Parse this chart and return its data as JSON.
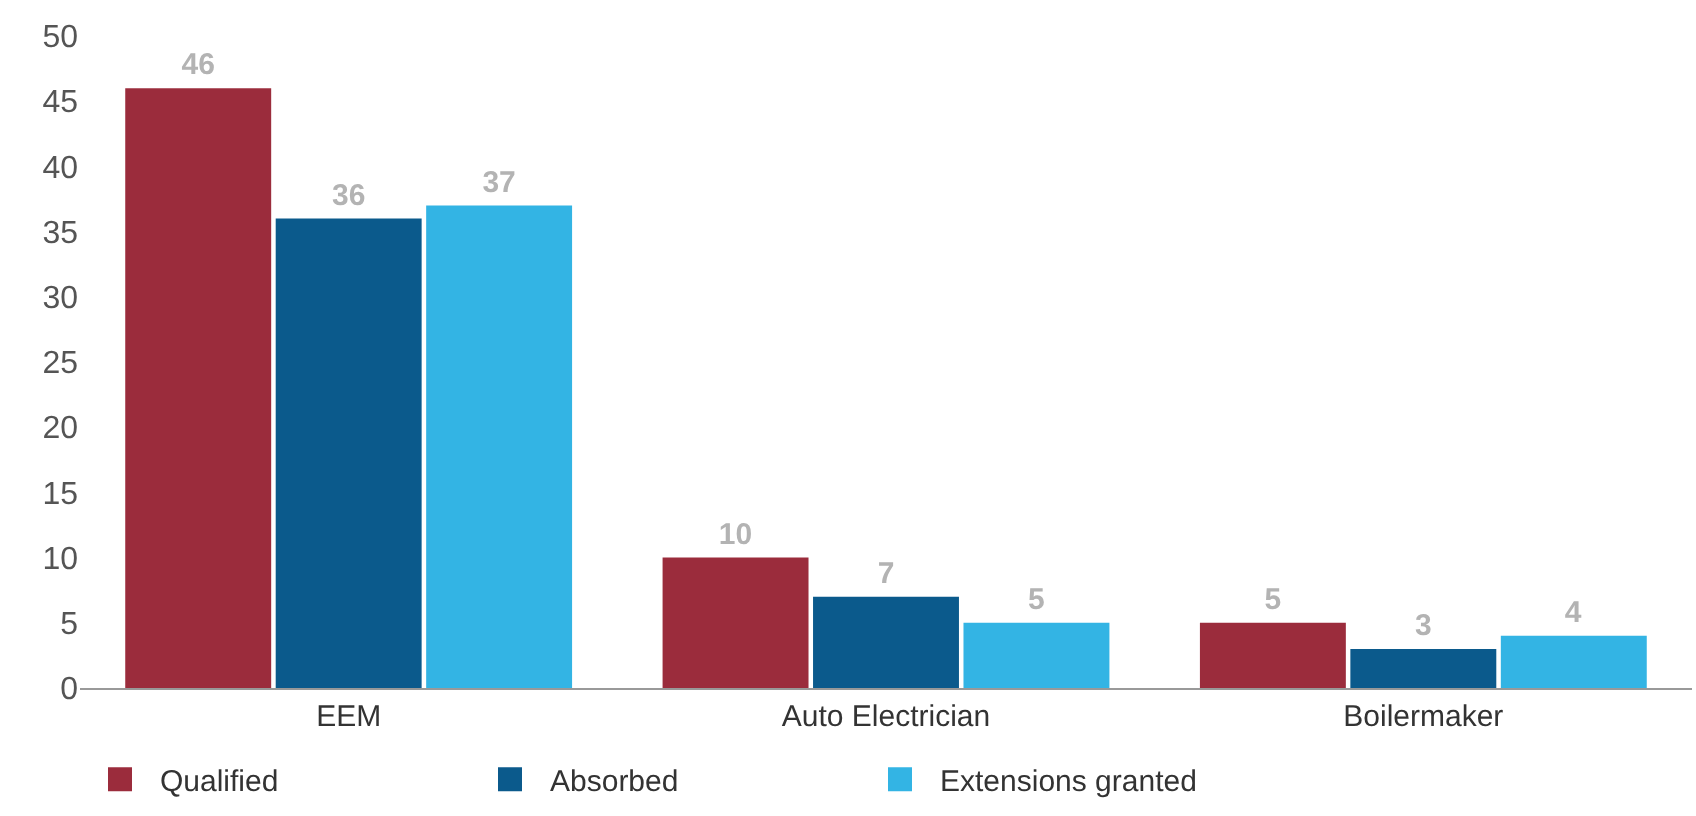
{
  "chart_data": {
    "type": "bar",
    "categories": [
      "EEM",
      "Auto Electrician",
      "Boilermaker"
    ],
    "series": [
      {
        "name": "Qualified",
        "color": "#9b2c3c",
        "values": [
          46,
          10,
          5
        ]
      },
      {
        "name": "Absorbed",
        "color": "#0b5a8c",
        "values": [
          36,
          7,
          3
        ]
      },
      {
        "name": "Extensions granted",
        "color": "#33b4e4",
        "values": [
          37,
          5,
          4
        ]
      }
    ],
    "ylim": [
      0,
      50
    ],
    "yticks": [
      0,
      5,
      10,
      15,
      20,
      25,
      30,
      35,
      40,
      45,
      50
    ],
    "legend": "bottom left",
    "data_labels": true
  }
}
